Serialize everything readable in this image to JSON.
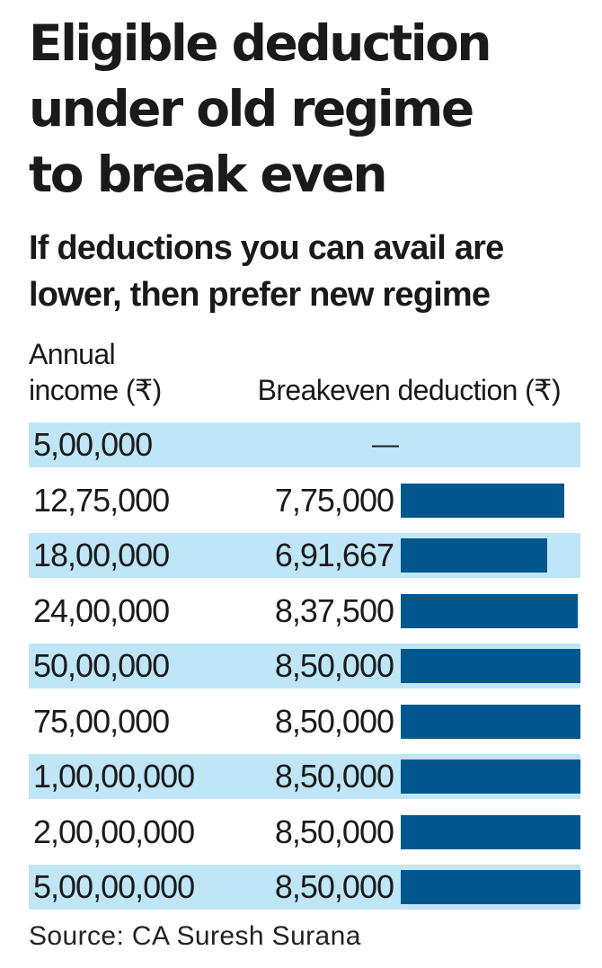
{
  "chart_data": {
    "type": "bar",
    "title_lines": [
      "Eligible deduction",
      "under old regime",
      "to break even"
    ],
    "subtitle_lines": [
      "If deductions you can avail are",
      "lower, then prefer new regime"
    ],
    "column_headers": {
      "income_lines": [
        "Annual",
        "income (₹)"
      ],
      "deduction": "Breakeven deduction (₹)"
    },
    "categories": [
      "5,00,000",
      "12,75,000",
      "18,00,000",
      "24,00,000",
      "50,00,000",
      "75,00,000",
      "1,00,00,000",
      "2,00,00,000",
      "5,00,00,000"
    ],
    "value_labels": [
      "—",
      "7,75,000",
      "6,91,667",
      "8,37,500",
      "8,50,000",
      "8,50,000",
      "8,50,000",
      "8,50,000",
      "8,50,000"
    ],
    "values": [
      null,
      775000,
      691667,
      837500,
      850000,
      850000,
      850000,
      850000,
      850000
    ],
    "bar_color": "#00578e",
    "shade_color": "#bfe6f7",
    "source": "Source: CA Suresh Surana"
  }
}
